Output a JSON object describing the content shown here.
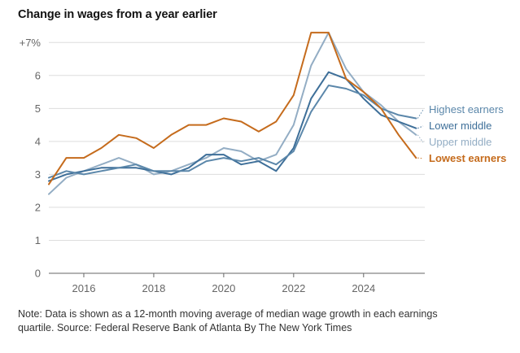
{
  "chart_data": {
    "type": "line",
    "title": "Change in wages from a year earlier",
    "xlabel": "",
    "ylabel": "",
    "xlim": [
      2015.0,
      2025.75
    ],
    "ylim": [
      0,
      7.5
    ],
    "y_ticks": [
      {
        "value": 0,
        "label": "0"
      },
      {
        "value": 1,
        "label": "1"
      },
      {
        "value": 2,
        "label": "2"
      },
      {
        "value": 3,
        "label": "3"
      },
      {
        "value": 4,
        "label": "4"
      },
      {
        "value": 5,
        "label": "5"
      },
      {
        "value": 6,
        "label": "6"
      },
      {
        "value": 7,
        "label": "+7%"
      }
    ],
    "x_ticks": [
      {
        "value": 2016,
        "label": "2016"
      },
      {
        "value": 2018,
        "label": "2018"
      },
      {
        "value": 2020,
        "label": "2020"
      },
      {
        "value": 2022,
        "label": "2022"
      },
      {
        "value": 2024,
        "label": "2024"
      }
    ],
    "grid": "horizontal",
    "series": [
      {
        "name": "Highest earners",
        "color": "#5b87aa",
        "end_value": 4.7,
        "points": [
          [
            2015.0,
            2.9
          ],
          [
            2015.5,
            3.1
          ],
          [
            2016.0,
            3.0
          ],
          [
            2016.5,
            3.1
          ],
          [
            2017.0,
            3.2
          ],
          [
            2017.5,
            3.3
          ],
          [
            2018.0,
            3.1
          ],
          [
            2018.5,
            3.1
          ],
          [
            2019.0,
            3.1
          ],
          [
            2019.5,
            3.4
          ],
          [
            2020.0,
            3.5
          ],
          [
            2020.5,
            3.4
          ],
          [
            2021.0,
            3.5
          ],
          [
            2021.5,
            3.3
          ],
          [
            2022.0,
            3.7
          ],
          [
            2022.5,
            4.9
          ],
          [
            2023.0,
            5.7
          ],
          [
            2023.5,
            5.6
          ],
          [
            2024.0,
            5.4
          ],
          [
            2024.5,
            5.0
          ],
          [
            2025.0,
            4.8
          ],
          [
            2025.5,
            4.7
          ]
        ]
      },
      {
        "name": "Lower middle",
        "color": "#3e6f99",
        "end_value": 4.4,
        "points": [
          [
            2015.0,
            2.8
          ],
          [
            2015.5,
            3.0
          ],
          [
            2016.0,
            3.1
          ],
          [
            2016.5,
            3.2
          ],
          [
            2017.0,
            3.2
          ],
          [
            2017.5,
            3.2
          ],
          [
            2018.0,
            3.1
          ],
          [
            2018.5,
            3.0
          ],
          [
            2019.0,
            3.2
          ],
          [
            2019.5,
            3.6
          ],
          [
            2020.0,
            3.6
          ],
          [
            2020.5,
            3.3
          ],
          [
            2021.0,
            3.4
          ],
          [
            2021.5,
            3.1
          ],
          [
            2022.0,
            3.8
          ],
          [
            2022.5,
            5.3
          ],
          [
            2023.0,
            6.1
          ],
          [
            2023.5,
            5.9
          ],
          [
            2024.0,
            5.3
          ],
          [
            2024.5,
            4.8
          ],
          [
            2025.0,
            4.6
          ],
          [
            2025.5,
            4.4
          ]
        ]
      },
      {
        "name": "Upper middle",
        "color": "#93adc4",
        "end_value": 4.2,
        "points": [
          [
            2015.0,
            2.4
          ],
          [
            2015.5,
            2.9
          ],
          [
            2016.0,
            3.1
          ],
          [
            2016.5,
            3.3
          ],
          [
            2017.0,
            3.5
          ],
          [
            2017.5,
            3.3
          ],
          [
            2018.0,
            3.0
          ],
          [
            2018.5,
            3.1
          ],
          [
            2019.0,
            3.3
          ],
          [
            2019.5,
            3.5
          ],
          [
            2020.0,
            3.8
          ],
          [
            2020.5,
            3.7
          ],
          [
            2021.0,
            3.4
          ],
          [
            2021.5,
            3.6
          ],
          [
            2022.0,
            4.5
          ],
          [
            2022.5,
            6.3
          ],
          [
            2023.0,
            7.3
          ],
          [
            2023.5,
            6.2
          ],
          [
            2024.0,
            5.5
          ],
          [
            2024.5,
            5.1
          ],
          [
            2025.0,
            4.6
          ],
          [
            2025.5,
            4.2
          ]
        ]
      },
      {
        "name": "Lowest earners",
        "color": "#c56b1c",
        "end_value": 3.5,
        "points": [
          [
            2015.0,
            2.7
          ],
          [
            2015.5,
            3.5
          ],
          [
            2016.0,
            3.5
          ],
          [
            2016.5,
            3.8
          ],
          [
            2017.0,
            4.2
          ],
          [
            2017.5,
            4.1
          ],
          [
            2018.0,
            3.8
          ],
          [
            2018.5,
            4.2
          ],
          [
            2019.0,
            4.5
          ],
          [
            2019.5,
            4.5
          ],
          [
            2020.0,
            4.7
          ],
          [
            2020.5,
            4.6
          ],
          [
            2021.0,
            4.3
          ],
          [
            2021.5,
            4.6
          ],
          [
            2022.0,
            5.4
          ],
          [
            2022.5,
            7.3
          ],
          [
            2023.0,
            7.3
          ],
          [
            2023.5,
            5.9
          ],
          [
            2024.0,
            5.5
          ],
          [
            2024.5,
            5.0
          ],
          [
            2025.0,
            4.2
          ],
          [
            2025.5,
            3.5
          ]
        ]
      }
    ]
  },
  "note": {
    "line1": "Note: Data is shown as a 12-month moving average of median wage growth in each earnings",
    "line2": "quartile.  Source: Federal Reserve Bank of Atlanta  By The New York Times"
  }
}
